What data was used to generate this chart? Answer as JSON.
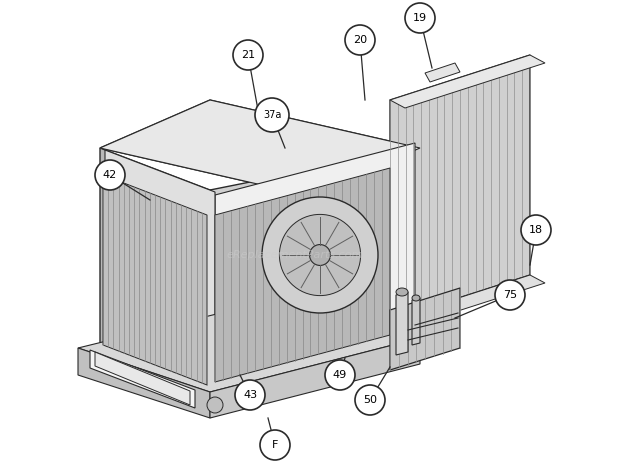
{
  "bg_color": "#ffffff",
  "line_color": "#2a2a2a",
  "watermark": "eReplacementParts.com",
  "watermark_color": "#cccccc",
  "fig_w": 6.2,
  "fig_h": 4.74,
  "dpi": 100
}
